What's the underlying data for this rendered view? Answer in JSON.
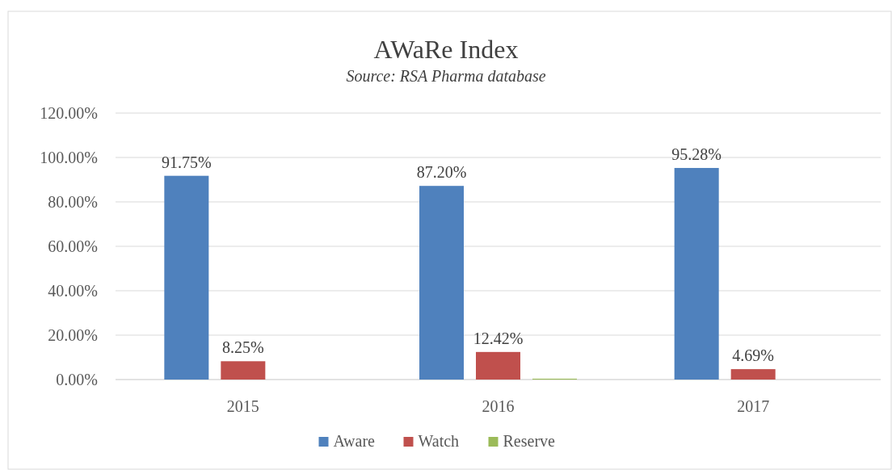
{
  "chart_data": {
    "type": "bar",
    "title": "AWaRe Index",
    "subtitle": "Source: RSA Pharma database",
    "categories": [
      "2015",
      "2016",
      "2017"
    ],
    "series": [
      {
        "name": "Aware",
        "color": "#4f81bd",
        "values": [
          91.75,
          87.2,
          95.28
        ],
        "value_labels": [
          "91.75%",
          "87.20%",
          "95.28%"
        ]
      },
      {
        "name": "Watch",
        "color": "#c0504d",
        "values": [
          8.25,
          12.42,
          4.69
        ],
        "value_labels": [
          "8.25%",
          "12.42%",
          "4.69%"
        ]
      },
      {
        "name": "Reserve",
        "color": "#9bbb59",
        "values": [
          null,
          0.4,
          null
        ],
        "value_labels": [
          null,
          null,
          null
        ]
      }
    ],
    "ylim": [
      0,
      120
    ],
    "yticks": [
      {
        "value": 0,
        "label": "0.00%"
      },
      {
        "value": 20,
        "label": "20.00%"
      },
      {
        "value": 40,
        "label": "40.00%"
      },
      {
        "value": 60,
        "label": "60.00%"
      },
      {
        "value": 80,
        "label": "80.00%"
      },
      {
        "value": 100,
        "label": "100.00%"
      },
      {
        "value": 120,
        "label": "120.00%"
      }
    ],
    "grid": "y",
    "legend": "bottom"
  }
}
